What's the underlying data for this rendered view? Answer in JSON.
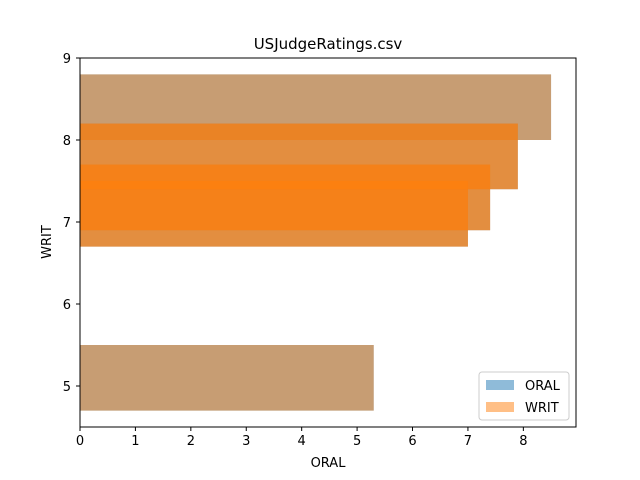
{
  "chart_data": {
    "type": "bar",
    "orientation": "horizontal",
    "title": "USJudgeRatings.csv",
    "xlabel": "ORAL",
    "ylabel": "WRIT",
    "xlim": [
      0,
      8.95
    ],
    "ylim": [
      4.5,
      9
    ],
    "xticks": [
      "0",
      "1",
      "2",
      "3",
      "4",
      "5",
      "6",
      "7",
      "8"
    ],
    "yticks": [
      "5",
      "6",
      "7",
      "8",
      "9"
    ],
    "bar_height": 0.8,
    "grid": false,
    "legend_position": "lower-right",
    "series": [
      {
        "name": "ORAL",
        "color": "#1f77b4",
        "opacity": 0.5,
        "bars": [
          {
            "y": 8.4,
            "value": 8.5
          },
          {
            "y": 7.8,
            "value": 7.9
          },
          {
            "y": 7.3,
            "value": 7.4
          },
          {
            "y": 7.1,
            "value": 7.0
          },
          {
            "y": 5.1,
            "value": 5.3
          }
        ]
      },
      {
        "name": "WRIT",
        "color": "#ff7f0e",
        "opacity": 0.5,
        "bars": [
          {
            "y": 8.4,
            "value": 8.5
          },
          {
            "y": 7.8,
            "value": 7.9
          },
          {
            "y": 7.8,
            "value": 7.9
          },
          {
            "y": 7.3,
            "value": 7.4
          },
          {
            "y": 7.3,
            "value": 7.4
          },
          {
            "y": 7.1,
            "value": 7.0
          },
          {
            "y": 7.1,
            "value": 7.0
          },
          {
            "y": 5.1,
            "value": 5.3
          }
        ]
      }
    ]
  }
}
